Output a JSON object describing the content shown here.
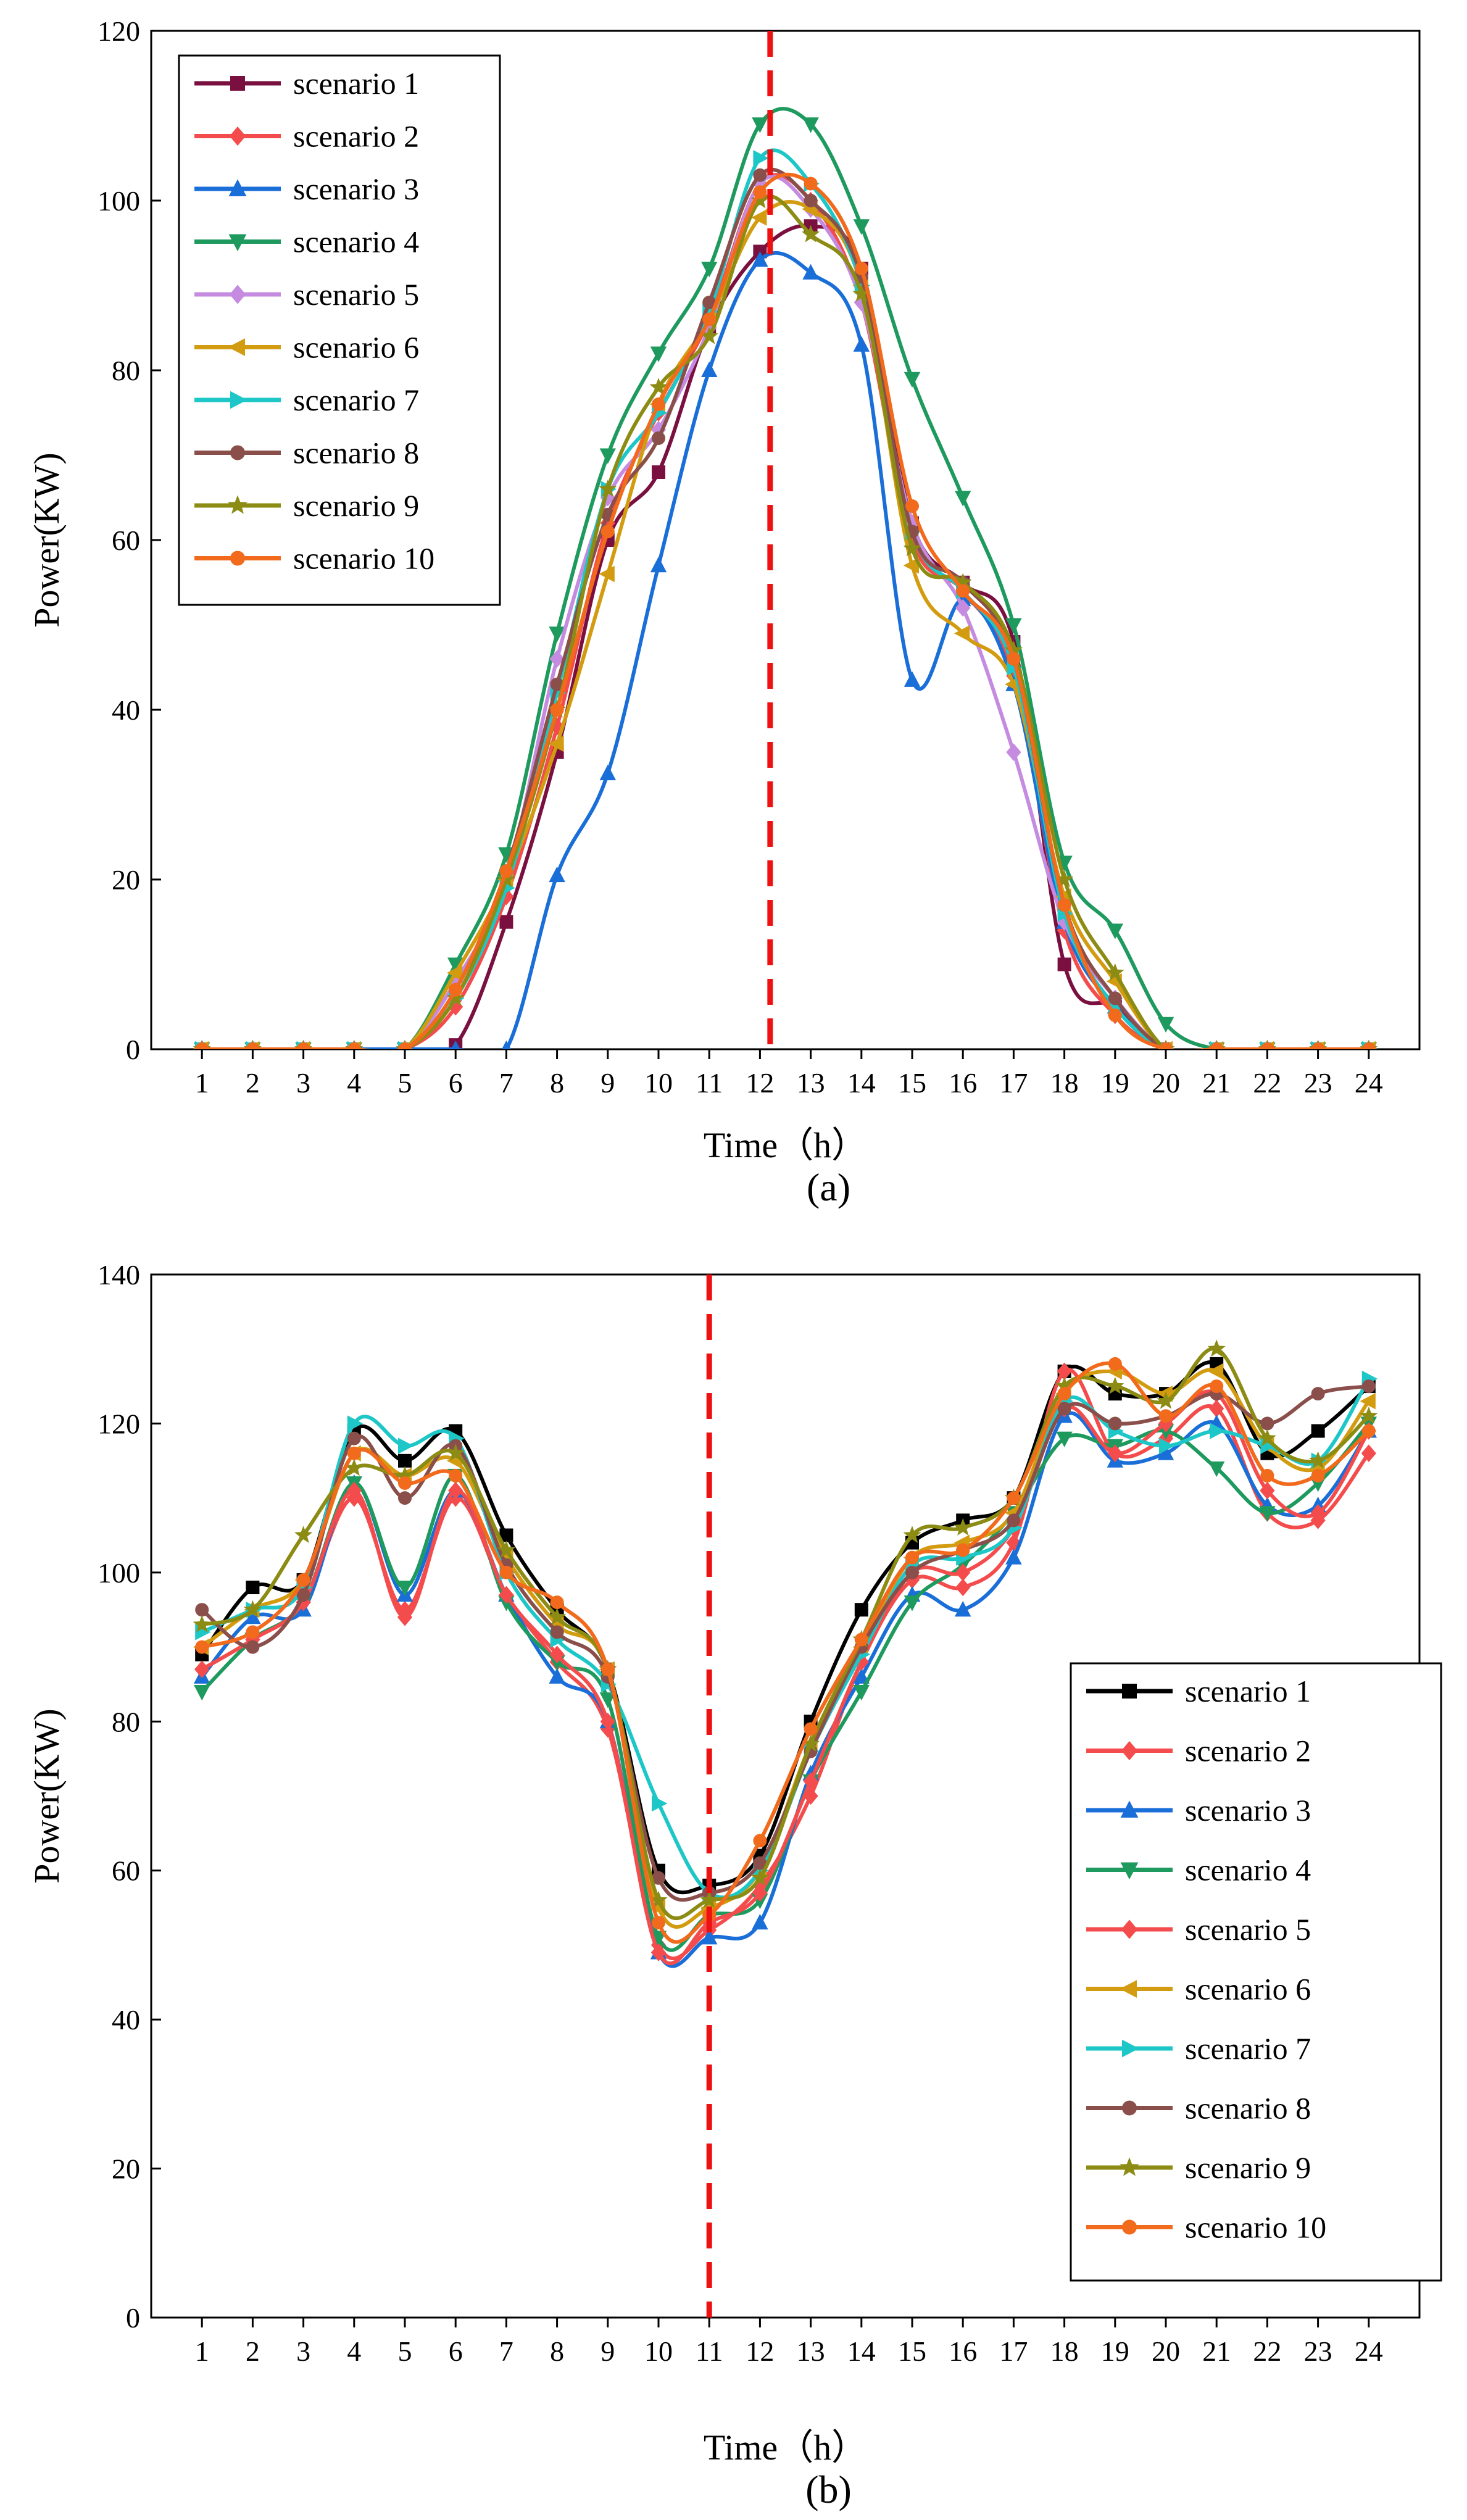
{
  "figure": {
    "panels": [
      "(a)",
      "(b)"
    ]
  },
  "chart_data": [
    {
      "type": "line",
      "panel_label": "(a)",
      "title": "",
      "xlabel": "Time（h）",
      "ylabel": "Power(KW)",
      "x": [
        1,
        2,
        3,
        4,
        5,
        6,
        7,
        8,
        9,
        10,
        11,
        12,
        13,
        14,
        15,
        16,
        17,
        18,
        19,
        20,
        21,
        22,
        23,
        24
      ],
      "xlim": [
        0,
        25
      ],
      "ylim": [
        0,
        120
      ],
      "yticks": [
        0,
        20,
        40,
        60,
        80,
        100,
        120
      ],
      "grid": false,
      "legend_position": "top-left",
      "vertical_reference_line": {
        "x": 12.2,
        "style": "dashed",
        "color": "#ee1111"
      },
      "series": [
        {
          "name": "scenario 1",
          "color": "#7a1040",
          "marker": "square",
          "values": [
            0,
            0,
            0,
            0,
            0,
            0.5,
            15,
            35,
            60,
            68,
            85,
            94,
            97,
            92,
            62,
            55,
            48,
            10,
            5,
            0,
            0,
            0,
            0,
            0
          ]
        },
        {
          "name": "scenario 2",
          "color": "#f44c4c",
          "marker": "diamond",
          "values": [
            0,
            0,
            0,
            0,
            0,
            5,
            18,
            38,
            62,
            75,
            86,
            102,
            100,
            88,
            60,
            54,
            44,
            14,
            4,
            0,
            0,
            0,
            0,
            0
          ]
        },
        {
          "name": "scenario 3",
          "color": "#1a6ed8",
          "marker": "triangle-up",
          "values": [
            0,
            0,
            0,
            0,
            0,
            0,
            0,
            20.5,
            32.5,
            57,
            80,
            93,
            91.5,
            83,
            43.5,
            53,
            43,
            15,
            5,
            0,
            0,
            0,
            0,
            0
          ]
        },
        {
          "name": "scenario 4",
          "color": "#1e9a5e",
          "marker": "triangle-down",
          "values": [
            0,
            0,
            0,
            0,
            0,
            10,
            23,
            49,
            70,
            82,
            92,
            109,
            109,
            97,
            79,
            65,
            50,
            22,
            14,
            3,
            0,
            0,
            0,
            0
          ]
        },
        {
          "name": "scenario 5",
          "color": "#c58be0",
          "marker": "diamond",
          "values": [
            0,
            0,
            0,
            0,
            0,
            8,
            20,
            46,
            65,
            73,
            85,
            102,
            99,
            88,
            62,
            52,
            35,
            15,
            6,
            0,
            0,
            0,
            0,
            0
          ]
        },
        {
          "name": "scenario 6",
          "color": "#d39b0f",
          "marker": "triangle-left",
          "values": [
            0,
            0,
            0,
            0,
            0,
            9,
            20,
            36,
            56,
            76,
            86,
            98,
            99,
            90,
            57,
            49,
            43,
            18,
            8,
            0,
            0,
            0,
            0,
            0
          ]
        },
        {
          "name": "scenario 7",
          "color": "#1ec7c7",
          "marker": "triangle-right",
          "values": [
            0,
            0,
            0,
            0,
            0,
            6,
            19,
            42,
            66,
            75,
            87,
            105,
            102,
            90,
            61,
            54,
            45,
            16,
            5,
            0,
            0,
            0,
            0,
            0
          ]
        },
        {
          "name": "scenario 8",
          "color": "#8a4f4a",
          "marker": "circle",
          "values": [
            0,
            0,
            0,
            0,
            0,
            7,
            21,
            43,
            63,
            72,
            88,
            103,
            100,
            91,
            61,
            55,
            46,
            17,
            6,
            0,
            0,
            0,
            0,
            0
          ]
        },
        {
          "name": "scenario 9",
          "color": "#8c8c14",
          "marker": "star",
          "values": [
            0,
            0,
            0,
            0,
            0,
            6,
            20,
            40,
            66,
            78,
            84,
            100,
            96,
            89,
            59,
            55,
            47,
            20,
            9,
            0,
            0,
            0,
            0,
            0
          ]
        },
        {
          "name": "scenario 10",
          "color": "#f26a1b",
          "marker": "circle",
          "values": [
            0,
            0,
            0,
            0,
            0,
            7,
            21,
            40,
            61,
            76,
            86,
            101,
            102,
            92,
            64,
            54,
            46,
            17,
            4,
            0,
            0,
            0,
            0,
            0
          ]
        }
      ]
    },
    {
      "type": "line",
      "panel_label": "(b)",
      "title": "",
      "xlabel": "Time（h）",
      "ylabel": "Power(KW)",
      "x": [
        1,
        2,
        3,
        4,
        5,
        6,
        7,
        8,
        9,
        10,
        11,
        12,
        13,
        14,
        15,
        16,
        17,
        18,
        19,
        20,
        21,
        22,
        23,
        24
      ],
      "xlim": [
        0,
        25
      ],
      "ylim": [
        0,
        140
      ],
      "yticks": [
        0,
        20,
        40,
        60,
        80,
        100,
        120,
        140
      ],
      "grid": false,
      "legend_position": "bottom-right",
      "vertical_reference_line": {
        "x": 11,
        "style": "dashed",
        "color": "#ee1111"
      },
      "series": [
        {
          "name": "scenario 1",
          "color": "#000000",
          "marker": "square",
          "values": [
            89,
            98,
            99,
            119,
            115,
            119,
            105,
            95,
            87,
            60,
            58,
            62,
            80,
            95,
            104,
            107,
            110,
            127,
            124,
            124,
            128,
            116,
            119,
            125
          ]
        },
        {
          "name": "scenario 2",
          "color": "#f44c4c",
          "marker": "diamond",
          "values": [
            87,
            91,
            96,
            110,
            95,
            110,
            97,
            88,
            79,
            50,
            52,
            58,
            70,
            88,
            99,
            98,
            104,
            127,
            116,
            118,
            122,
            108,
            107,
            116
          ]
        },
        {
          "name": "scenario 3",
          "color": "#1a6ed8",
          "marker": "triangle-up",
          "values": [
            86,
            94,
            95,
            112,
            97,
            111,
            97,
            86,
            80,
            49,
            51,
            53,
            73,
            86,
            97,
            95,
            102,
            121,
            115,
            116,
            120,
            109,
            109,
            119
          ]
        },
        {
          "name": "scenario 4",
          "color": "#1e9a5e",
          "marker": "triangle-down",
          "values": [
            84,
            91,
            96,
            112,
            98,
            113,
            96,
            88,
            83,
            51,
            54,
            56,
            72,
            84,
            96,
            101,
            108,
            118,
            117,
            119,
            114,
            108,
            112,
            120
          ]
        },
        {
          "name": "scenario 5",
          "color": "#f44c4c",
          "marker": "diamond",
          "values": [
            87,
            91,
            96,
            111,
            94,
            111,
            97,
            89,
            80,
            49,
            53,
            57,
            72,
            88,
            100,
            100,
            106,
            122,
            116,
            120,
            124,
            111,
            108,
            119
          ]
        },
        {
          "name": "scenario 6",
          "color": "#d39b0f",
          "marker": "triangle-left",
          "values": [
            90,
            95,
            99,
            116,
            113,
            115,
            102,
            93,
            87,
            55,
            55,
            60,
            77,
            90,
            102,
            104,
            108,
            124,
            127,
            124,
            127,
            117,
            114,
            123
          ]
        },
        {
          "name": "scenario 7",
          "color": "#1ec7c7",
          "marker": "triangle-right",
          "values": [
            92,
            95,
            98,
            120,
            117,
            118,
            100,
            91,
            85,
            69,
            57,
            60,
            76,
            89,
            101,
            102,
            106,
            123,
            119,
            117,
            119,
            117,
            115,
            126
          ]
        },
        {
          "name": "scenario 8",
          "color": "#8a4f4a",
          "marker": "circle",
          "values": [
            95,
            90,
            97,
            118,
            110,
            117,
            101,
            92,
            86,
            59,
            57,
            61,
            76,
            90,
            100,
            103,
            107,
            122,
            120,
            121,
            124,
            120,
            124,
            125
          ]
        },
        {
          "name": "scenario 9",
          "color": "#8c8c14",
          "marker": "star",
          "values": [
            93,
            95,
            105,
            114,
            113,
            116,
            103,
            94,
            87,
            56,
            56,
            59,
            77,
            91,
            105,
            106,
            110,
            125,
            125,
            123,
            130,
            118,
            115,
            121
          ]
        },
        {
          "name": "scenario 10",
          "color": "#f26a1b",
          "marker": "circle",
          "values": [
            90,
            92,
            99,
            116,
            112,
            113,
            100,
            96,
            87,
            53,
            54,
            64,
            79,
            91,
            102,
            103,
            110,
            124,
            128,
            121,
            125,
            113,
            113,
            119
          ]
        }
      ]
    }
  ]
}
